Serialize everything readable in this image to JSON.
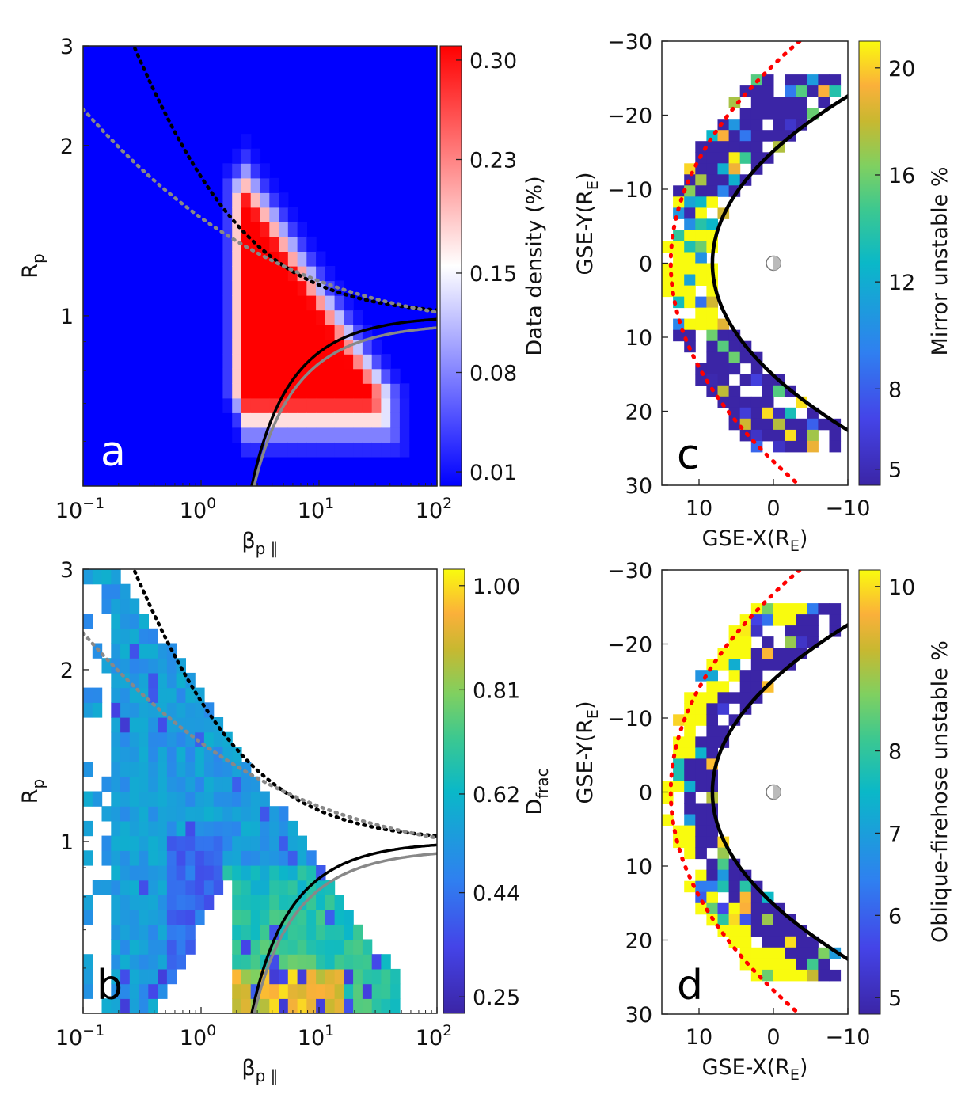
{
  "chart_data": [
    {
      "panel": "a",
      "type": "heatmap",
      "panel_label": "a",
      "xlabel": "β",
      "xlabel_sub": "p ∥",
      "ylabel": "R",
      "ylabel_sub": "p",
      "xscale": "log",
      "yscale": "log",
      "xlim": [
        0.1,
        100
      ],
      "ylim": [
        0.5,
        3
      ],
      "xticks": [
        0.1,
        1,
        10,
        100
      ],
      "xtick_labels": [
        {
          "base": "10",
          "exp": "−1"
        },
        {
          "base": "10",
          "exp": "0"
        },
        {
          "base": "10",
          "exp": "1"
        },
        {
          "base": "10",
          "exp": "2"
        }
      ],
      "yticks": [
        1,
        2,
        3
      ],
      "ytick_labels": [
        "1",
        "2",
        "3"
      ],
      "colormap": "bwr",
      "colorbar": {
        "label": "Data density (%)",
        "vmin": 0.0,
        "vmax": 0.31,
        "ticks": [
          0.01,
          0.08,
          0.15,
          0.23,
          0.3
        ],
        "tick_labels": [
          "0.01",
          "0.08",
          "0.15",
          "0.23",
          "0.30"
        ]
      },
      "description": "2D histogram of proton temperature anisotropy vs parallel beta; high density (red) triangle centered near beta~3-30, Rp~0.75-1.5",
      "curves": [
        {
          "name": "mirror threshold (black dotted)",
          "style": "dotted",
          "color": "#000000",
          "a": 0.77,
          "b": 0.76,
          "beta0": -0.016
        },
        {
          "name": "mirror threshold alt (gray dotted)",
          "style": "dotted",
          "color": "#808080",
          "a": 0.57,
          "b": 0.39,
          "beta0": 0.0
        },
        {
          "name": "oblique firehose threshold (black solid)",
          "style": "solid",
          "color": "#000000",
          "a": -1.4,
          "b": 1.0,
          "beta0": -0.11
        },
        {
          "name": "oblique firehose threshold alt (gray solid)",
          "style": "solid",
          "color": "#808080",
          "a": -1.4,
          "b": 1.0,
          "beta0": 0.0
        }
      ]
    },
    {
      "panel": "b",
      "type": "heatmap",
      "panel_label": "b",
      "xlabel": "β",
      "xlabel_sub": "p ∥",
      "ylabel": "R",
      "ylabel_sub": "p",
      "xscale": "log",
      "yscale": "log",
      "xlim": [
        0.1,
        100
      ],
      "ylim": [
        0.5,
        3
      ],
      "xticks": [
        0.1,
        1,
        10,
        100
      ],
      "xtick_labels": [
        {
          "base": "10",
          "exp": "−1"
        },
        {
          "base": "10",
          "exp": "0"
        },
        {
          "base": "10",
          "exp": "1"
        },
        {
          "base": "10",
          "exp": "2"
        }
      ],
      "yticks": [
        1,
        2,
        3
      ],
      "ytick_labels": [
        "1",
        "2",
        "3"
      ],
      "colormap": "viridis-like (purple→blue→teal→green→yellow)",
      "colorbar": {
        "label": "D",
        "label_sub": "frac",
        "vmin": 0.22,
        "vmax": 1.03,
        "ticks": [
          0.25,
          0.44,
          0.62,
          0.81,
          1.0
        ],
        "tick_labels": [
          "0.25",
          "0.44",
          "0.62",
          "0.81",
          "1.00"
        ]
      },
      "description": "Fraction map; mostly 0.4-0.65 (blue/teal), higher (yellow-orange ~0.8-1.0) near beta 3-10, Rp < 0.7"
    },
    {
      "panel": "c",
      "type": "heatmap",
      "panel_label": "c",
      "xlabel": "GSE-X(R",
      "xlabel_sub": "E",
      "xlabel_end": ")",
      "ylabel": "GSE-Y(R",
      "ylabel_sub": "E",
      "ylabel_end": ")",
      "xlim": [
        15,
        -10
      ],
      "ylim": [
        -30,
        30
      ],
      "xticks": [
        10,
        0,
        -10
      ],
      "xtick_labels": [
        "10",
        "0",
        "−10"
      ],
      "yticks": [
        -30,
        -20,
        -10,
        0,
        10,
        20,
        30
      ],
      "ytick_labels": [
        "−30",
        "−20",
        "−10",
        "0",
        "10",
        "20",
        "30"
      ],
      "colorbar": {
        "label": "Mirror unstable %",
        "vmin": 4.4,
        "vmax": 21,
        "ticks": [
          5,
          8,
          12,
          16,
          20
        ],
        "tick_labels": [
          "5",
          "8",
          "12",
          "16",
          "20"
        ]
      },
      "description": "Spatial distribution in magnetosheath between bow shock (red dotted) and magnetopause (black solid); high values (yellow, ~20%) near subsolar region X~10-14",
      "earth_position": [
        0,
        0
      ]
    },
    {
      "panel": "d",
      "type": "heatmap",
      "panel_label": "d",
      "xlabel": "GSE-X(R",
      "xlabel_sub": "E",
      "xlabel_end": ")",
      "ylabel": "GSE-Y(R",
      "ylabel_sub": "E",
      "ylabel_end": ")",
      "xlim": [
        15,
        -10
      ],
      "ylim": [
        -30,
        30
      ],
      "xticks": [
        10,
        0,
        -10
      ],
      "xtick_labels": [
        "10",
        "0",
        "−10"
      ],
      "yticks": [
        -30,
        -20,
        -10,
        0,
        10,
        20,
        30
      ],
      "ytick_labels": [
        "−30",
        "−20",
        "−10",
        "0",
        "10",
        "20",
        "30"
      ],
      "colorbar": {
        "label": "Oblique-firehose unstable %",
        "vmin": 4.8,
        "vmax": 10.2,
        "ticks": [
          5,
          6,
          7,
          8,
          10
        ],
        "tick_labels": [
          "5",
          "6",
          "7",
          "8",
          "10"
        ]
      },
      "description": "Spatial distribution; high values (yellow ~10%) near bow shock and flanks, low (purple ~5%) adjacent to magnetopause",
      "earth_position": [
        0,
        0
      ]
    }
  ],
  "boundaries": {
    "bow_shock": {
      "style": "dotted",
      "color": "#ff0000"
    },
    "magnetopause": {
      "style": "solid",
      "color": "#000000"
    }
  }
}
